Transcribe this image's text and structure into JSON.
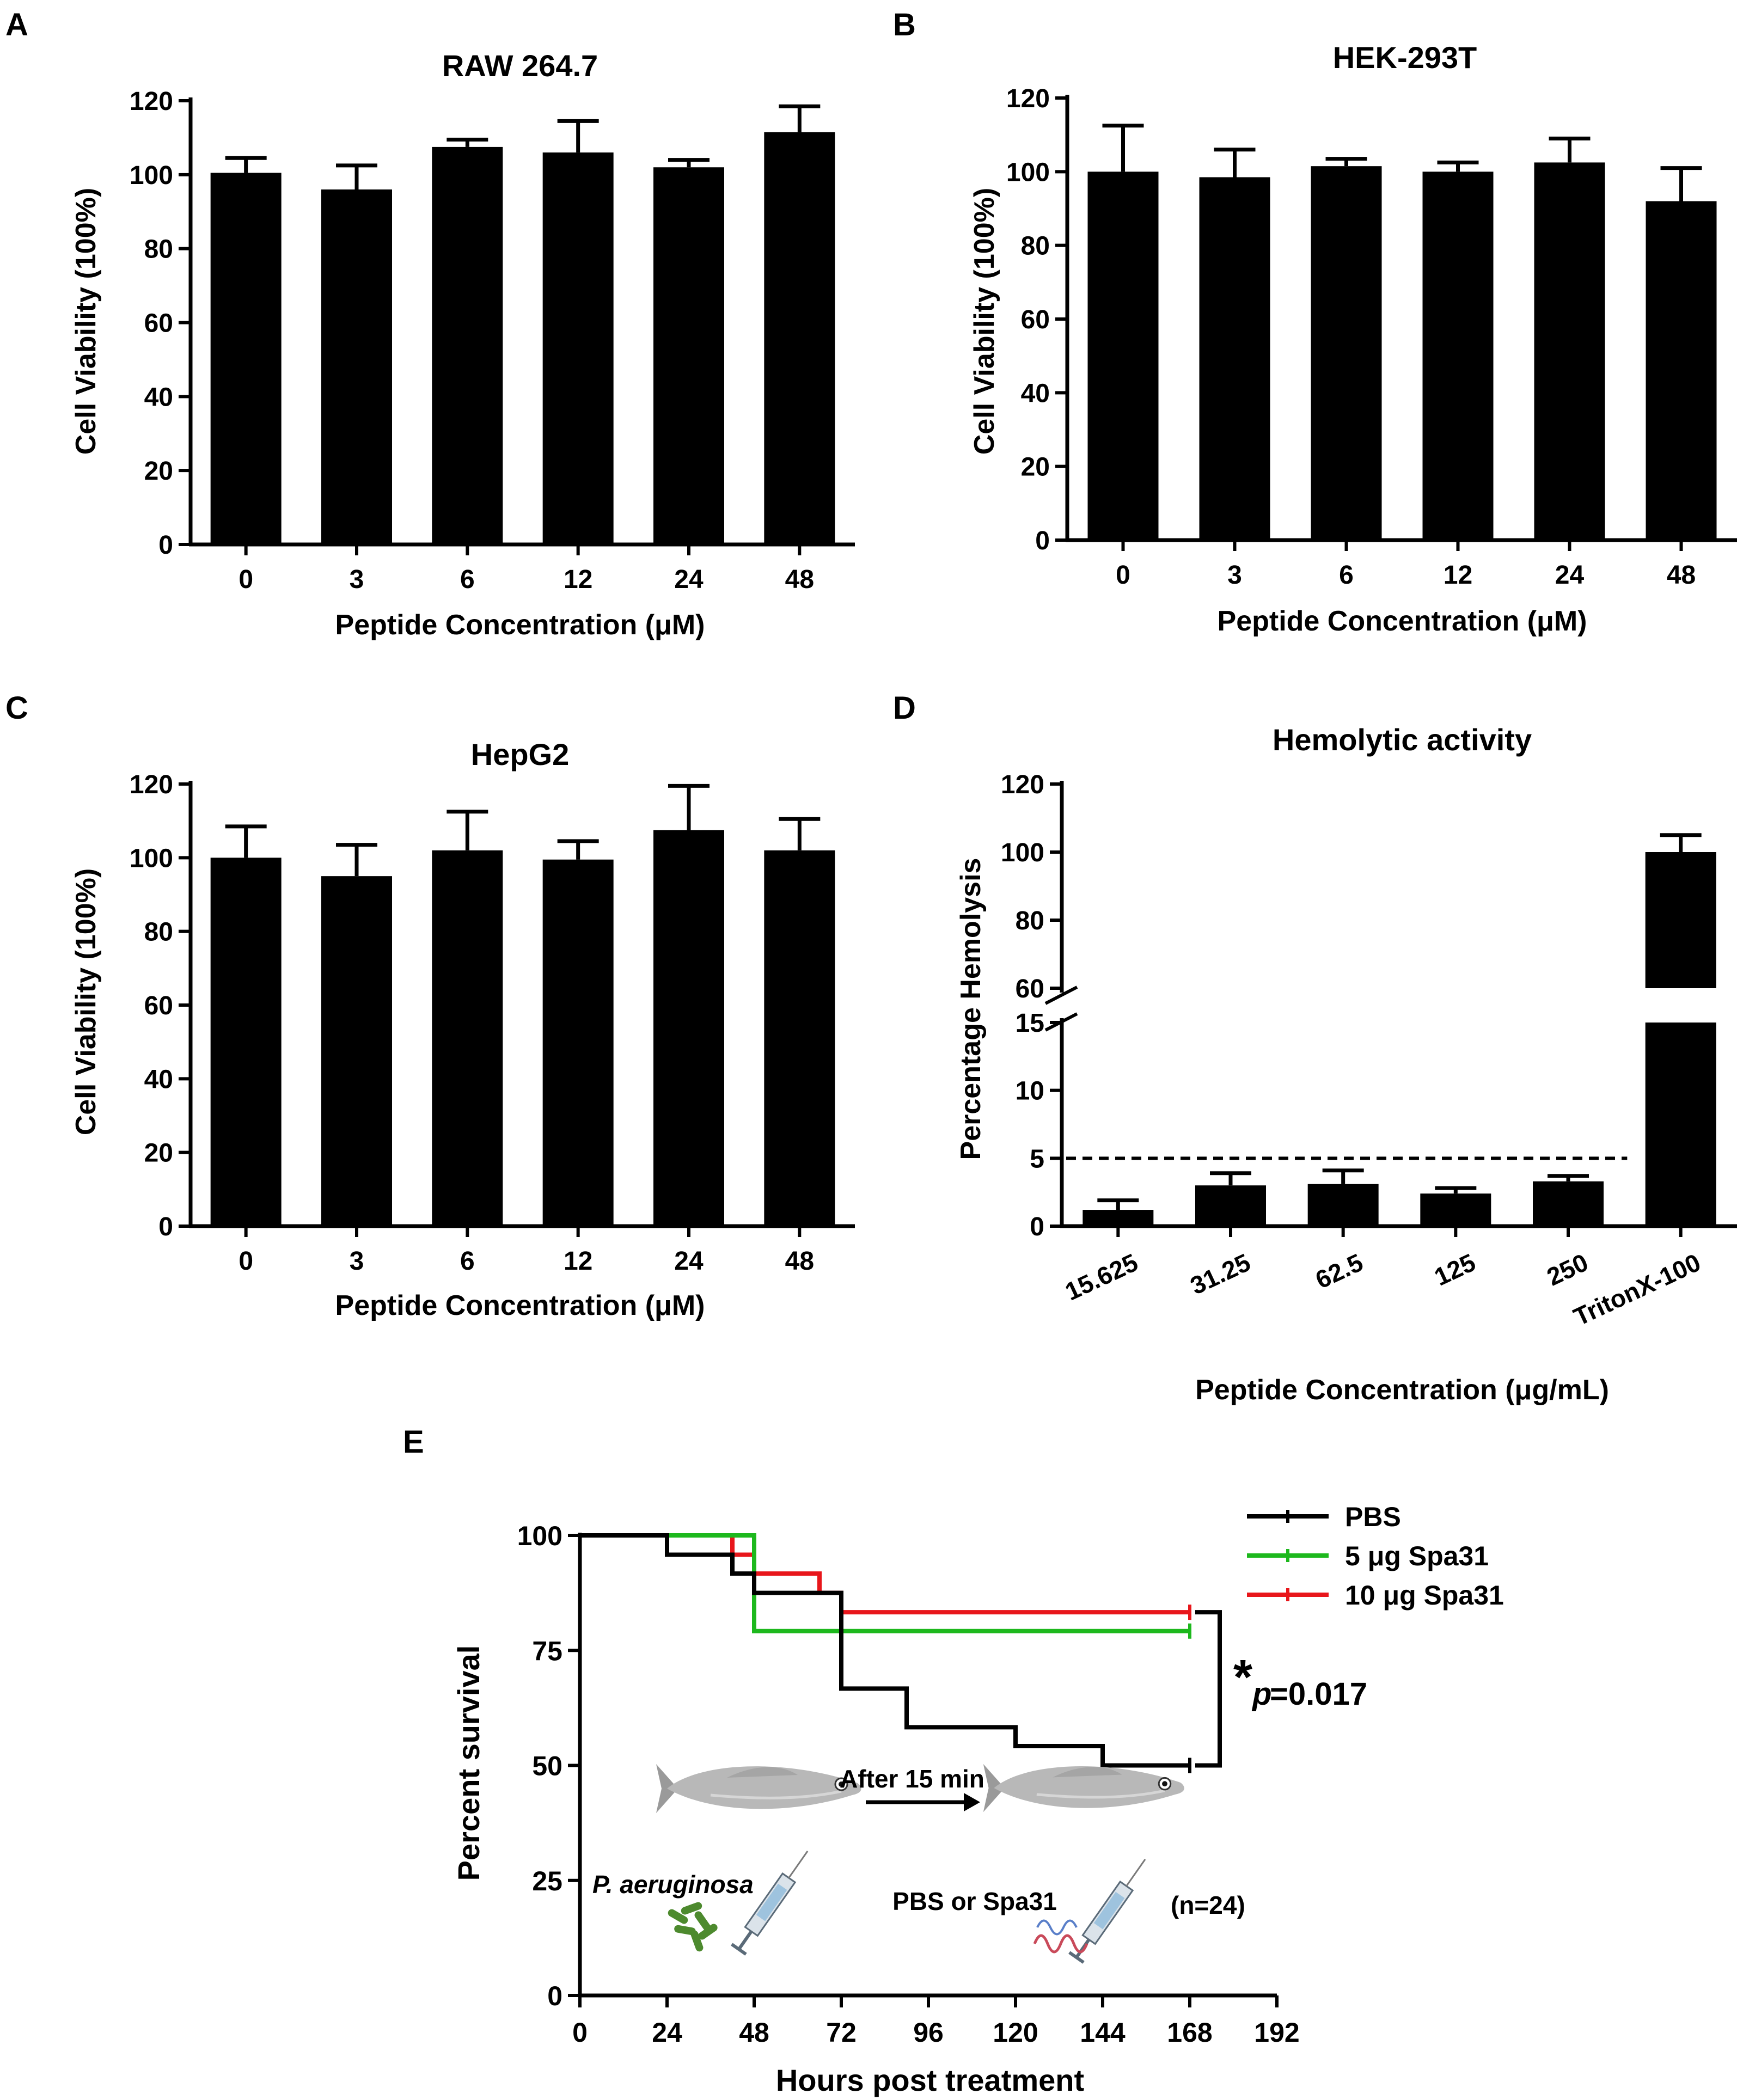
{
  "chart_data": [
    {
      "panel": "A",
      "type": "bar",
      "title": "RAW 264.7",
      "xlabel": "Peptide Concentration (μM)",
      "ylabel": "Cell Viability (100%)",
      "categories": [
        "0",
        "3",
        "6",
        "12",
        "24",
        "48"
      ],
      "values": [
        100.5,
        96,
        107.5,
        106,
        102,
        111.5
      ],
      "errors": [
        4,
        6.5,
        2,
        8.5,
        2,
        7
      ],
      "ylim": [
        0,
        120
      ],
      "yticks": [
        "0",
        "20",
        "40",
        "60",
        "80",
        "100",
        "120"
      ]
    },
    {
      "panel": "B",
      "type": "bar",
      "title": "HEK-293T",
      "xlabel": "Peptide Concentration (μM)",
      "ylabel": "Cell Viability (100%)",
      "categories": [
        "0",
        "3",
        "6",
        "12",
        "24",
        "48"
      ],
      "values": [
        100,
        98.5,
        101.5,
        100,
        102.5,
        92
      ],
      "errors": [
        12.5,
        7.5,
        2,
        2.5,
        6.5,
        9
      ],
      "ylim": [
        0,
        120
      ],
      "yticks": [
        "0",
        "20",
        "40",
        "60",
        "80",
        "100",
        "120"
      ]
    },
    {
      "panel": "C",
      "type": "bar",
      "title": "HepG2",
      "xlabel": "Peptide Concentration (μM)",
      "ylabel": "Cell Viability (100%)",
      "categories": [
        "0",
        "3",
        "6",
        "12",
        "24",
        "48"
      ],
      "values": [
        100,
        95,
        102,
        99.5,
        107.5,
        102
      ],
      "errors": [
        8.5,
        8.5,
        10.5,
        5,
        12,
        8.5
      ],
      "ylim": [
        0,
        120
      ],
      "yticks": [
        "0",
        "20",
        "40",
        "60",
        "80",
        "100",
        "120"
      ]
    },
    {
      "panel": "D",
      "type": "bar",
      "title": "Hemolytic activity",
      "xlabel": "Peptide Concentration (μg/mL)",
      "ylabel": "Percentage Hemolysis",
      "categories": [
        "15.625",
        "31.25",
        "62.5",
        "125",
        "250",
        "TritonX-100"
      ],
      "values": [
        1.2,
        3,
        3.1,
        2.4,
        3.3,
        100
      ],
      "errors": [
        0.7,
        0.9,
        1.0,
        0.4,
        0.4,
        5
      ],
      "axis_break": {
        "lower_range": [
          0,
          15
        ],
        "upper_range": [
          60,
          120
        ]
      },
      "yticks_lower": [
        "0",
        "5",
        "10",
        "15"
      ],
      "yticks_upper": [
        "60",
        "80",
        "100",
        "120"
      ],
      "threshold_line": 5
    },
    {
      "panel": "E",
      "type": "line",
      "subtype": "kaplan-meier",
      "xlabel": "Hours post treatment",
      "ylabel": "Percent survival",
      "xlim": [
        0,
        192
      ],
      "ylim": [
        0,
        100
      ],
      "xticks": [
        "0",
        "24",
        "48",
        "72",
        "96",
        "120",
        "144",
        "168",
        "192"
      ],
      "yticks": [
        "0",
        "25",
        "50",
        "75",
        "100"
      ],
      "series": [
        {
          "name": "PBS",
          "color": "#000000",
          "x": [
            0,
            24,
            42,
            48,
            72,
            72,
            90,
            120,
            144,
            168
          ],
          "y": [
            100,
            95.8,
            91.7,
            87.5,
            79.2,
            66.7,
            58.3,
            54.2,
            50,
            50
          ]
        },
        {
          "name": "5 μg Spa31",
          "color": "#1db81d",
          "x": [
            0,
            42,
            48,
            168
          ],
          "y": [
            100,
            100,
            79.2,
            79.2
          ]
        },
        {
          "name": "10 μg Spa31",
          "color": "#e8161b",
          "x": [
            0,
            42,
            48,
            66,
            72,
            168
          ],
          "y": [
            100,
            95.8,
            91.7,
            87.5,
            83.3,
            83.3
          ]
        }
      ],
      "annotation": {
        "star": "*",
        "p_label": "p",
        "p_value": "=0.017"
      },
      "inset": {
        "step1": "After 15 min",
        "pathogen": "P. aeruginosa",
        "treatment": "PBS or Spa31",
        "n": "(n=24)"
      }
    }
  ],
  "panel_labels": [
    "A",
    "B",
    "C",
    "D",
    "E"
  ]
}
